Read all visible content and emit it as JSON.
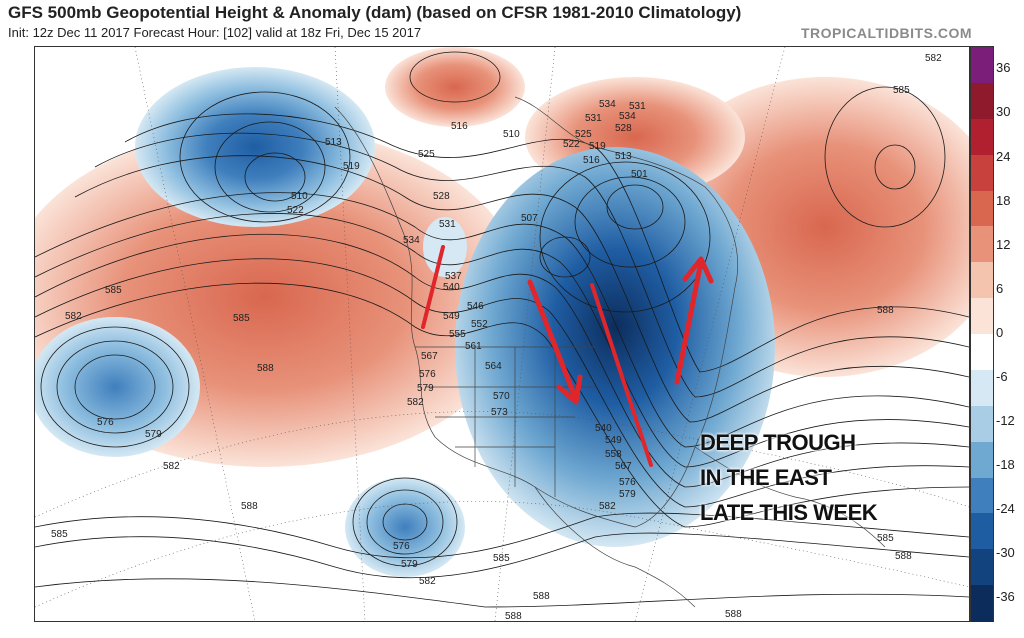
{
  "header": {
    "title": "GFS 500mb Geopotential Height & Anomaly (dam) (based on CFSR 1981-2010 Climatology)",
    "subtitle": "Init: 12z Dec 11 2017   Forecast Hour: [102]   valid at 18z Fri, Dec 15 2017",
    "credit": "TROPICALTIDBITS.COM"
  },
  "annotation": {
    "line1": "DEEP TROUGH",
    "line2": "IN THE EAST",
    "line3": "LATE THIS WEEK"
  },
  "colorbar": {
    "labels": [
      "36",
      "30",
      "24",
      "18",
      "12",
      "6",
      "0",
      "-6",
      "-12",
      "-18",
      "-24",
      "-30",
      "-36"
    ],
    "colors": [
      "#7a1e7a",
      "#8e1a2c",
      "#b0202e",
      "#c9413d",
      "#d9674f",
      "#e8927a",
      "#f5c4ae",
      "#fbe3d8",
      "#ffffff",
      "#d5e8f3",
      "#a8cde4",
      "#6fa8d1",
      "#3f7fbd",
      "#1f5da3",
      "#13437e",
      "#0c2d5c"
    ]
  },
  "contours": {
    "labels": [
      {
        "text": "585"
      },
      {
        "text": "582"
      },
      {
        "text": "585"
      },
      {
        "text": "588"
      },
      {
        "text": "576"
      },
      {
        "text": "579"
      },
      {
        "text": "582"
      },
      {
        "text": "585"
      },
      {
        "text": "576"
      },
      {
        "text": "579"
      },
      {
        "text": "582"
      },
      {
        "text": "585"
      },
      {
        "text": "588"
      },
      {
        "text": "588"
      },
      {
        "text": "510"
      },
      {
        "text": "522"
      },
      {
        "text": "513"
      },
      {
        "text": "519"
      },
      {
        "text": "516"
      },
      {
        "text": "525"
      },
      {
        "text": "534"
      },
      {
        "text": "531"
      },
      {
        "text": "528"
      },
      {
        "text": "537"
      },
      {
        "text": "540"
      },
      {
        "text": "546"
      },
      {
        "text": "549"
      },
      {
        "text": "552"
      },
      {
        "text": "555"
      },
      {
        "text": "561"
      },
      {
        "text": "564"
      },
      {
        "text": "567"
      },
      {
        "text": "570"
      },
      {
        "text": "573"
      },
      {
        "text": "576"
      },
      {
        "text": "579"
      },
      {
        "text": "582"
      },
      {
        "text": "507"
      },
      {
        "text": "501"
      },
      {
        "text": "510"
      },
      {
        "text": "513"
      },
      {
        "text": "516"
      },
      {
        "text": "519"
      },
      {
        "text": "522"
      },
      {
        "text": "525"
      },
      {
        "text": "528"
      },
      {
        "text": "531"
      },
      {
        "text": "534"
      },
      {
        "text": "582"
      },
      {
        "text": "585"
      },
      {
        "text": "588"
      },
      {
        "text": "585"
      },
      {
        "text": "588"
      },
      {
        "text": "588"
      },
      {
        "text": "588"
      },
      {
        "text": "576"
      },
      {
        "text": "579"
      },
      {
        "text": "582"
      },
      {
        "text": "567"
      },
      {
        "text": "558"
      },
      {
        "text": "549"
      },
      {
        "text": "540"
      },
      {
        "text": "534"
      },
      {
        "text": "531"
      }
    ]
  },
  "arrow_color": "#e0262b"
}
